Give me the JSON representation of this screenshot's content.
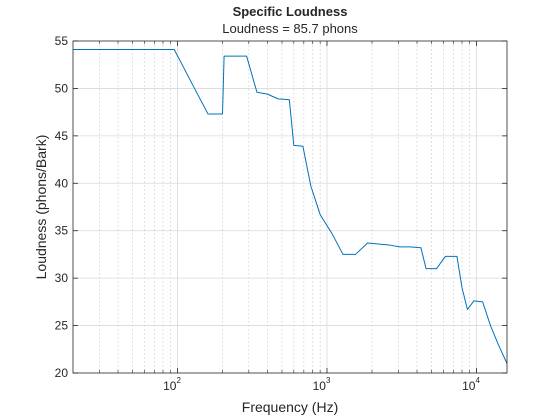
{
  "chart_data": {
    "type": "line",
    "title": "Specific Loudness",
    "subtitle": "Loudness = 85.7 phons",
    "xlabel": "Frequency (Hz)",
    "ylabel": "Loudness (phons/Bark)",
    "x_scale": "log",
    "xlim": [
      20,
      16000
    ],
    "ylim": [
      20,
      55
    ],
    "y_ticks": [
      20,
      25,
      30,
      35,
      40,
      45,
      50,
      55
    ],
    "x_major_ticks": [
      {
        "value": 100,
        "base": "10",
        "exp": "2"
      },
      {
        "value": 1000,
        "base": "10",
        "exp": "3"
      },
      {
        "value": 10000,
        "base": "10",
        "exp": "4"
      }
    ],
    "grid": true,
    "line_color": "#0072BD",
    "series": [
      {
        "x": [
          20,
          95,
          110,
          130,
          160,
          200,
          205,
          290,
          340,
          400,
          470,
          560,
          600,
          690,
          780,
          900,
          1080,
          1280,
          1550,
          1870,
          2200,
          2600,
          3050,
          3600,
          4250,
          4600,
          5400,
          6200,
          7400,
          8000,
          8700,
          9600,
          11000,
          12400,
          14000,
          16000
        ],
        "y": [
          54.1,
          54.1,
          52.2,
          50,
          47.3,
          47.3,
          53.4,
          53.4,
          49.6,
          49.4,
          48.9,
          48.8,
          44,
          43.9,
          39.7,
          36.7,
          34.7,
          32.5,
          32.5,
          33.7,
          33.6,
          33.5,
          33.3,
          33.3,
          33.2,
          31,
          31,
          32.3,
          32.3,
          29,
          26.7,
          27.6,
          27.5,
          25,
          23,
          21
        ]
      }
    ]
  }
}
